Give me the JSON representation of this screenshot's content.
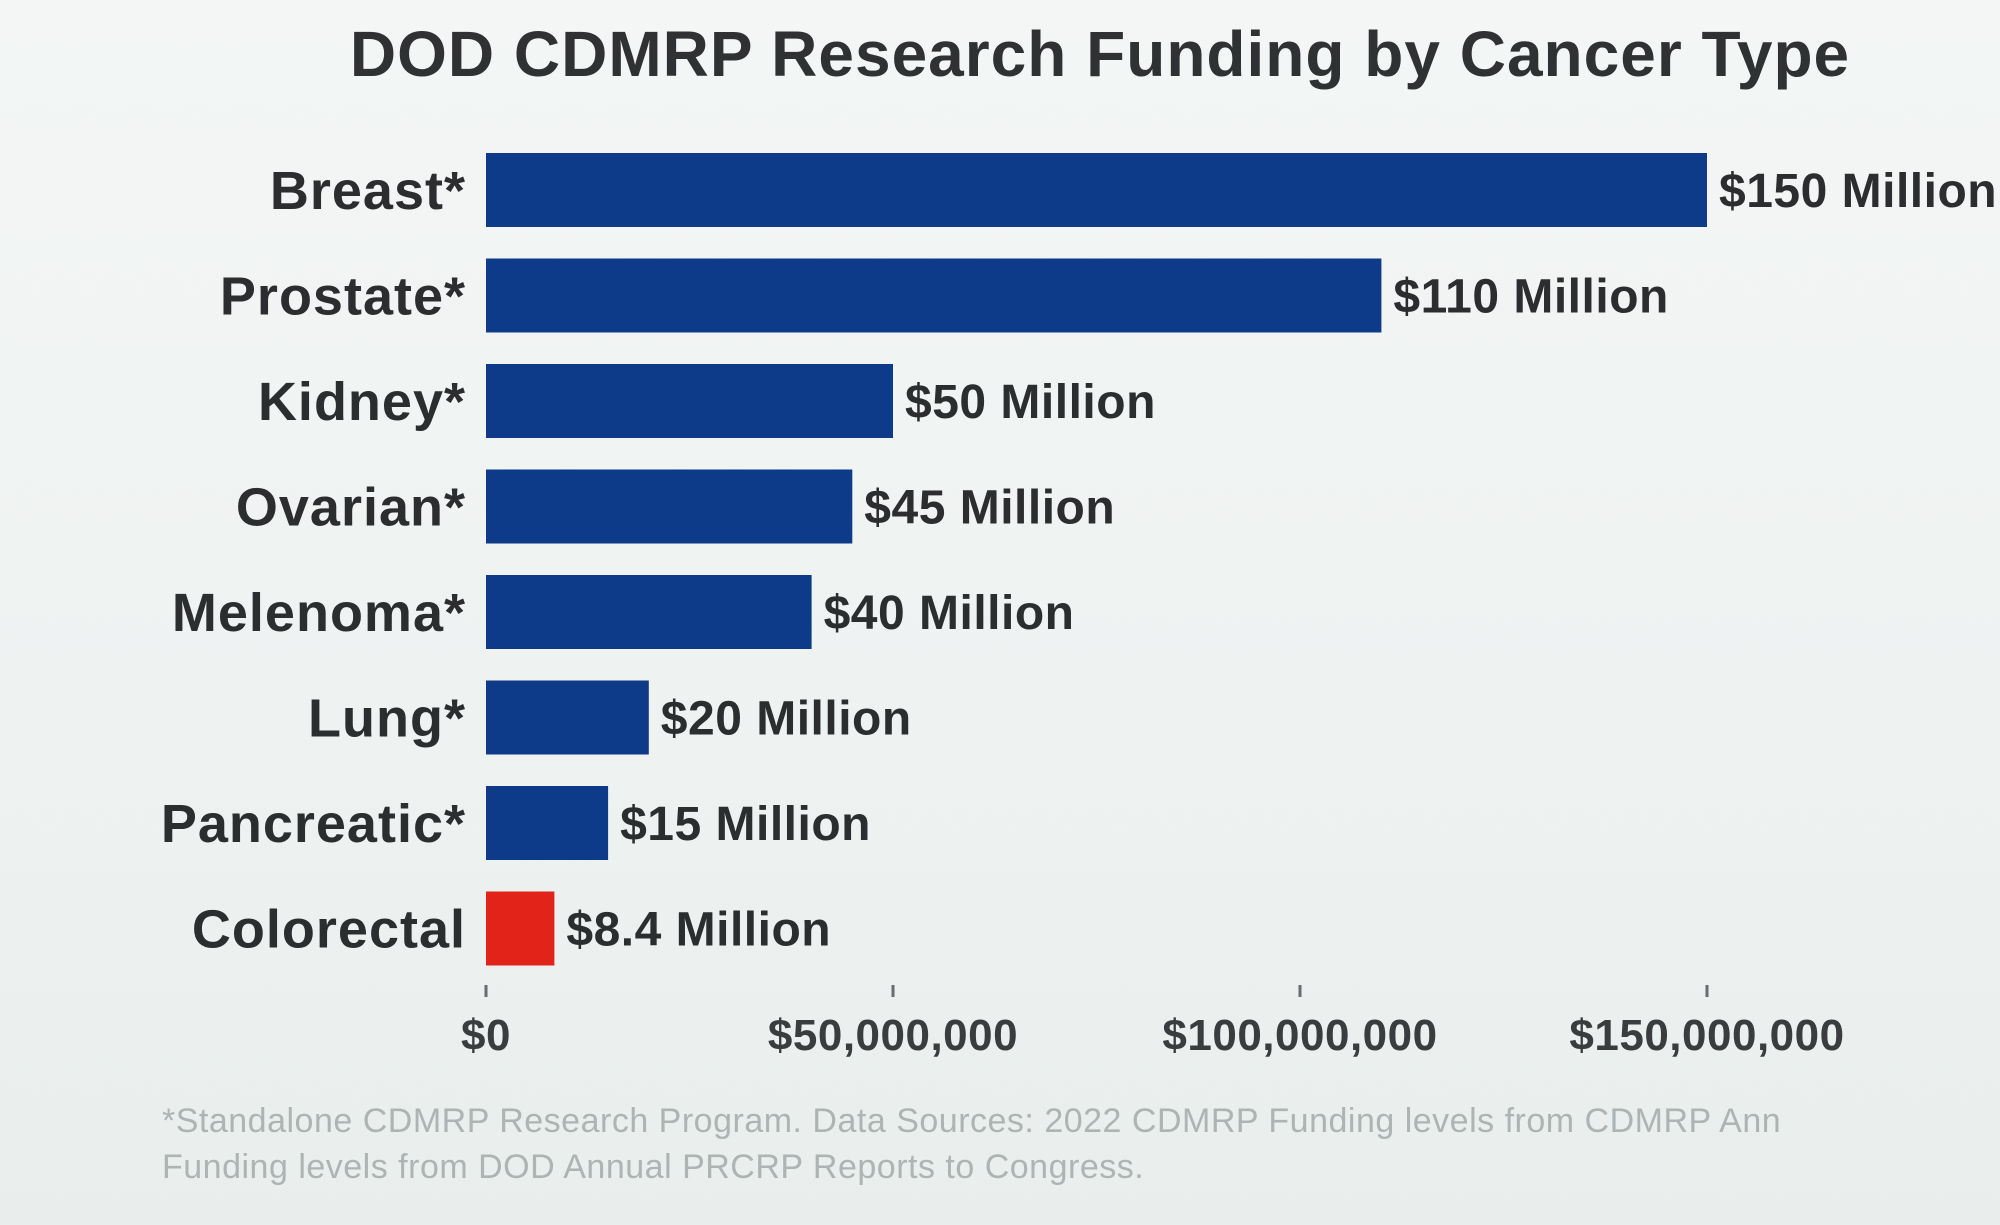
{
  "chart_data": {
    "type": "bar",
    "orientation": "horizontal",
    "title": "DOD CDMRP Research Funding by Cancer Type",
    "xlabel": "",
    "ylabel": "",
    "xlim": [
      0,
      150000000
    ],
    "x_ticks": [
      0,
      50000000,
      100000000,
      150000000
    ],
    "x_tick_labels": [
      "$0",
      "$50,000,000",
      "$100,000,000",
      "$150,000,000"
    ],
    "grid": false,
    "legend": "none",
    "categories": [
      "Breast*",
      "Prostate*",
      "Kidney*",
      "Ovarian*",
      "Melenoma*",
      "Lung*",
      "Pancreatic*",
      "Colorectal"
    ],
    "values": [
      150000000,
      110000000,
      50000000,
      45000000,
      40000000,
      20000000,
      15000000,
      8400000
    ],
    "data_labels": [
      "$150 Million",
      "$110 Million",
      "$50 Million",
      "$45 Million",
      "$40 Million",
      "$20 Million",
      "$15 Million",
      "$8.4 Million"
    ],
    "bar_colors": [
      "#0e3a8a",
      "#0e3a8a",
      "#0e3a8a",
      "#0e3a8a",
      "#0e3a8a",
      "#0e3a8a",
      "#0e3a8a",
      "#e2231a"
    ],
    "footnote_lines": [
      "*Standalone CDMRP Research Program. Data Sources: 2022 CDMRP Funding levels from CDMRP Ann",
      "Funding levels from DOD Annual PRCRP Reports to Congress."
    ]
  }
}
